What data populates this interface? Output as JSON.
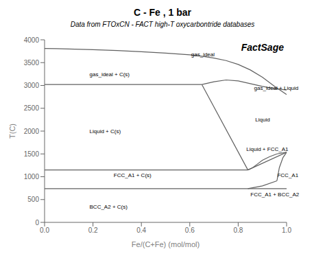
{
  "chart_data": {
    "type": "line",
    "title": "C - Fe , 1 bar",
    "subtitle": "Data from FTOxCN - FACT high-T oxycarbontride databases",
    "watermark": "FactSage",
    "xlabel": "Fe/(C+Fe) (mol/mol)",
    "ylabel": "T(C)",
    "xlim": [
      0,
      1
    ],
    "ylim": [
      0,
      4000
    ],
    "xticks": [
      {
        "value": 0,
        "label": "0.0"
      },
      0.2,
      0.4,
      0.6,
      0.8,
      {
        "value": 1,
        "label": "1.0"
      }
    ],
    "yticks": [
      0,
      500,
      1000,
      1500,
      2000,
      2500,
      3000,
      3500,
      4000
    ],
    "grid": false,
    "color": "#606060",
    "series": [
      {
        "x": [
          0.0,
          0.05,
          0.1,
          0.2,
          0.3,
          0.4,
          0.5,
          0.6,
          0.65,
          0.7,
          0.75,
          0.8,
          0.85,
          0.9,
          0.95,
          1.0
        ],
        "values": [
          3810,
          3805,
          3800,
          3785,
          3765,
          3740,
          3710,
          3670,
          3640,
          3600,
          3545,
          3460,
          3340,
          3180,
          2980,
          2800
        ]
      },
      {
        "x": [
          0.0,
          0.65
        ],
        "values": [
          3020,
          3020
        ]
      },
      {
        "x": [
          0.65,
          0.7,
          0.75,
          0.8,
          0.85,
          0.9,
          0.95,
          1.0
        ],
        "values": [
          3020,
          3080,
          3120,
          3100,
          3040,
          2980,
          2930,
          2900
        ]
      },
      {
        "x": [
          0.65,
          0.84
        ],
        "values": [
          3020,
          1148
        ]
      },
      {
        "x": [
          0.84,
          1.0
        ],
        "values": [
          1148,
          1536
        ]
      },
      {
        "x": [
          0.0,
          0.84
        ],
        "values": [
          1148,
          1148
        ]
      },
      {
        "x": [
          0.0,
          1.0
        ],
        "values": [
          740,
          740
        ]
      },
      {
        "x": [
          0.84,
          0.86,
          0.88,
          0.9,
          0.93,
          0.96
        ],
        "values": [
          1148,
          1200,
          1280,
          1360,
          1440,
          1500
        ]
      },
      {
        "x": [
          0.96,
          1.0
        ],
        "values": [
          1500,
          1536
        ]
      },
      {
        "x": [
          1.0,
          0.985,
          0.97,
          0.96
        ],
        "values": [
          1536,
          1420,
          1200,
          910
        ]
      },
      {
        "x": [
          0.96,
          0.9,
          0.84
        ],
        "values": [
          910,
          800,
          740
        ]
      }
    ],
    "annotations": [
      {
        "text": "gas_ideal",
        "x": 0.6,
        "y": 3680
      },
      {
        "text": "gas_ideal + C(s)",
        "x": 0.18,
        "y": 3250
      },
      {
        "text": "gas_ideal + Liquid",
        "x": 0.86,
        "y": 2940
      },
      {
        "text": "Liquid + C(s)",
        "x": 0.18,
        "y": 2000
      },
      {
        "text": "Liquid",
        "x": 0.865,
        "y": 2250
      },
      {
        "text": "Liquid + FCC_A1",
        "x": 0.828,
        "y": 1610
      },
      {
        "text": "FCC_A1 + C(s)",
        "x": 0.28,
        "y": 1040
      },
      {
        "text": "FCC_A1",
        "x": 0.956,
        "y": 1040
      },
      {
        "text": "FCC_A1 + BCC_A2",
        "x": 0.845,
        "y": 620
      },
      {
        "text": "BCC_A2 + C(s)",
        "x": 0.18,
        "y": 350
      }
    ]
  }
}
